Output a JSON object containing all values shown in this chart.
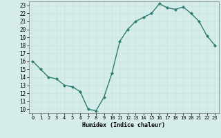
{
  "x": [
    0,
    1,
    2,
    3,
    4,
    5,
    6,
    7,
    8,
    9,
    10,
    11,
    12,
    13,
    14,
    15,
    16,
    17,
    18,
    19,
    20,
    21,
    22,
    23
  ],
  "y": [
    16.0,
    15.0,
    14.0,
    13.8,
    13.0,
    12.8,
    12.2,
    10.0,
    9.8,
    11.5,
    14.5,
    18.5,
    20.0,
    21.0,
    21.5,
    22.0,
    23.2,
    22.7,
    22.5,
    22.8,
    22.0,
    21.0,
    19.2,
    18.0
  ],
  "xlabel": "Humidex (Indice chaleur)",
  "ylim": [
    9.5,
    23.5
  ],
  "xlim": [
    -0.5,
    23.5
  ],
  "yticks": [
    10,
    11,
    12,
    13,
    14,
    15,
    16,
    17,
    18,
    19,
    20,
    21,
    22,
    23
  ],
  "xticks": [
    0,
    1,
    2,
    3,
    4,
    5,
    6,
    7,
    8,
    9,
    10,
    11,
    12,
    13,
    14,
    15,
    16,
    17,
    18,
    19,
    20,
    21,
    22,
    23
  ],
  "line_color": "#2e7d6e",
  "marker_color": "#2e7d6e",
  "grid_color": "#c8e8e4",
  "axes_bg": "#d6ecea",
  "fig_bg": "#d6ecea"
}
